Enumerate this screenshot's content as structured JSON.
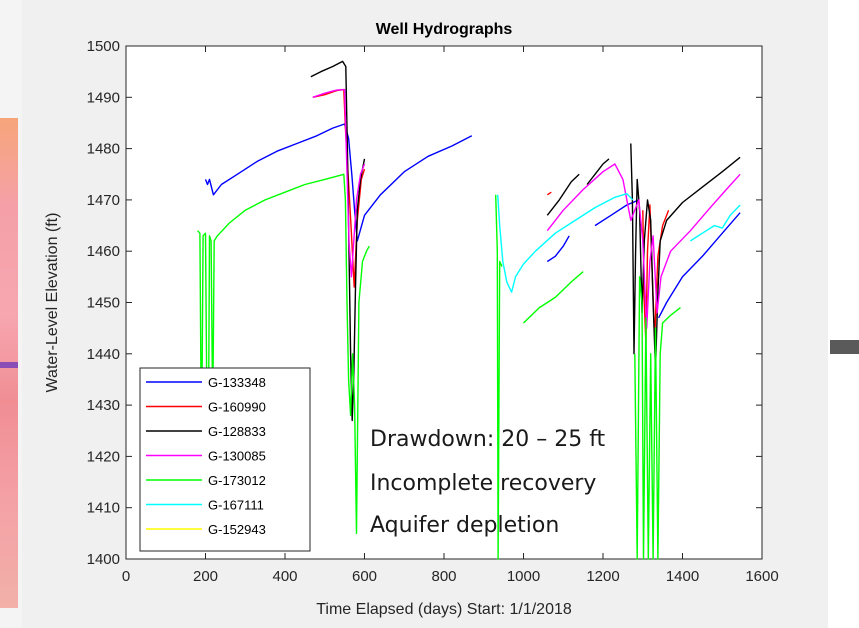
{
  "chart_data": {
    "type": "line",
    "title": "Well Hydrographs",
    "xlabel": "Time Elapsed (days) Start: 1/1/2018",
    "ylabel": "Water-Level Elevation (ft)",
    "xlim": [
      0,
      1600
    ],
    "ylim": [
      1400,
      1500
    ],
    "xticks": [
      0,
      200,
      400,
      600,
      800,
      1000,
      1200,
      1400,
      1600
    ],
    "yticks": [
      1400,
      1410,
      1420,
      1430,
      1440,
      1450,
      1460,
      1470,
      1480,
      1490,
      1500
    ],
    "grid": false,
    "legend_position": "bottom-left",
    "annotations": [
      "Drawdown: 20 – 25 ft",
      "Incomplete recovery",
      "Aquifer depletion"
    ],
    "series": [
      {
        "name": "G-133348",
        "color": "#0000ff",
        "segments": [
          [
            [
              200,
              1474
            ],
            [
              205,
              1473
            ],
            [
              210,
              1474
            ],
            [
              220,
              1471
            ],
            [
              240,
              1473
            ],
            [
              280,
              1475
            ],
            [
              330,
              1477.5
            ],
            [
              380,
              1479.5
            ],
            [
              430,
              1481
            ],
            [
              480,
              1482.5
            ],
            [
              520,
              1484
            ],
            [
              550,
              1484.8
            ],
            [
              560,
              1482
            ],
            [
              568,
              1475
            ],
            [
              575,
              1468
            ],
            [
              582,
              1462
            ],
            [
              600,
              1467
            ],
            [
              640,
              1471
            ],
            [
              700,
              1475.5
            ],
            [
              760,
              1478.5
            ],
            [
              820,
              1480.5
            ],
            [
              870,
              1482.5
            ]
          ],
          [
            [
              1060,
              1458
            ],
            [
              1080,
              1459
            ],
            [
              1100,
              1461
            ],
            [
              1115,
              1463
            ]
          ],
          [
            [
              1180,
              1465
            ],
            [
              1220,
              1467
            ],
            [
              1260,
              1469
            ],
            [
              1290,
              1470
            ]
          ],
          [
            [
              1340,
              1447
            ],
            [
              1360,
              1450
            ],
            [
              1400,
              1455
            ],
            [
              1450,
              1459
            ],
            [
              1500,
              1463.5
            ],
            [
              1545,
              1467.5
            ]
          ]
        ]
      },
      {
        "name": "G-160990",
        "color": "#ff0000",
        "segments": [
          [
            [
              470,
              1490
            ],
            [
              500,
              1490.5
            ],
            [
              530,
              1491.3
            ],
            [
              548,
              1491.5
            ],
            [
              552,
              1484
            ],
            [
              558,
              1476
            ],
            [
              566,
              1465
            ],
            [
              574,
              1453
            ],
            [
              582,
              1466
            ],
            [
              592,
              1474
            ],
            [
              600,
              1476
            ]
          ],
          [
            [
              1060,
              1471
            ],
            [
              1070,
              1471.5
            ]
          ],
          [
            [
              1300,
              1468
            ],
            [
              1304,
              1450
            ],
            [
              1308,
              1442
            ],
            [
              1312,
              1460
            ],
            [
              1318,
              1469
            ],
            [
              1324,
              1455
            ],
            [
              1330,
              1443
            ],
            [
              1338,
              1459
            ],
            [
              1350,
              1465
            ],
            [
              1365,
              1468
            ]
          ]
        ]
      },
      {
        "name": "G-128833",
        "color": "#000000",
        "segments": [
          [
            [
              465,
              1494
            ],
            [
              490,
              1495
            ],
            [
              520,
              1496
            ],
            [
              545,
              1497
            ],
            [
              553,
              1496
            ],
            [
              557,
              1480
            ],
            [
              561,
              1460
            ],
            [
              565,
              1440
            ],
            [
              569,
              1427
            ],
            [
              573,
              1436
            ],
            [
              577,
              1452
            ],
            [
              582,
              1468
            ],
            [
              590,
              1474
            ],
            [
              600,
              1478
            ]
          ],
          [
            [
              1060,
              1467
            ],
            [
              1090,
              1470
            ],
            [
              1120,
              1473.5
            ],
            [
              1140,
              1475
            ]
          ],
          [
            [
              1160,
              1473
            ],
            [
              1180,
              1475
            ],
            [
              1200,
              1477
            ],
            [
              1215,
              1478
            ]
          ],
          [
            [
              1270,
              1481
            ],
            [
              1274,
              1470
            ],
            [
              1278,
              1440
            ],
            [
              1282,
              1460
            ],
            [
              1286,
              1474
            ],
            [
              1292,
              1468
            ],
            [
              1298,
              1448
            ],
            [
              1304,
              1462
            ],
            [
              1312,
              1470
            ],
            [
              1320,
              1466
            ],
            [
              1326,
              1450
            ],
            [
              1332,
              1437
            ],
            [
              1338,
              1452
            ],
            [
              1344,
              1462
            ],
            [
              1360,
              1466
            ],
            [
              1400,
              1469.5
            ],
            [
              1450,
              1472.5
            ],
            [
              1500,
              1475.5
            ],
            [
              1545,
              1478.3
            ]
          ]
        ]
      },
      {
        "name": "G-130085",
        "color": "#ff00ff",
        "segments": [
          [
            [
              470,
              1490
            ],
            [
              500,
              1490.8
            ],
            [
              530,
              1491.4
            ],
            [
              550,
              1491.5
            ],
            [
              555,
              1478
            ],
            [
              561,
              1462
            ],
            [
              567,
              1455
            ],
            [
              573,
              1462
            ],
            [
              580,
              1470
            ],
            [
              590,
              1475
            ],
            [
              600,
              1477
            ]
          ],
          [
            [
              1060,
              1464
            ],
            [
              1100,
              1468
            ],
            [
              1150,
              1472
            ],
            [
              1200,
              1475.5
            ],
            [
              1230,
              1477
            ],
            [
              1250,
              1474
            ],
            [
              1270,
              1466
            ],
            [
              1290,
              1470
            ],
            [
              1300,
              1462
            ],
            [
              1310,
              1445
            ],
            [
              1318,
              1458
            ],
            [
              1326,
              1463
            ],
            [
              1336,
              1448
            ],
            [
              1346,
              1455
            ],
            [
              1370,
              1460
            ],
            [
              1420,
              1464
            ],
            [
              1470,
              1468.5
            ],
            [
              1510,
              1472
            ],
            [
              1545,
              1475
            ]
          ]
        ]
      },
      {
        "name": "G-173012",
        "color": "#00ff00",
        "segments": [
          [
            [
              180,
              1464
            ],
            [
              186,
              1463.5
            ],
            [
              190,
              1420
            ],
            [
              194,
              1463
            ],
            [
              200,
              1463.5
            ],
            [
              206,
              1405
            ],
            [
              210,
              1463
            ],
            [
              214,
              1462
            ],
            [
              218,
              1428
            ],
            [
              222,
              1462
            ],
            [
              230,
              1463
            ],
            [
              260,
              1465.5
            ],
            [
              300,
              1468
            ],
            [
              350,
              1470
            ],
            [
              400,
              1471.5
            ],
            [
              450,
              1473
            ],
            [
              500,
              1474
            ],
            [
              548,
              1475
            ],
            [
              552,
              1470
            ],
            [
              556,
              1450
            ],
            [
              560,
              1435
            ],
            [
              565,
              1428
            ],
            [
              570,
              1440
            ],
            [
              575,
              1430
            ],
            [
              580,
              1405
            ],
            [
              586,
              1450
            ],
            [
              595,
              1458
            ],
            [
              605,
              1460
            ],
            [
              612,
              1461
            ]
          ],
          [
            [
              930,
              1471
            ],
            [
              934,
              1460
            ],
            [
              936,
              1400
            ],
            [
              940,
              1458
            ],
            [
              946,
              1457
            ]
          ],
          [
            [
              1000,
              1446
            ],
            [
              1040,
              1449
            ],
            [
              1080,
              1451
            ],
            [
              1120,
              1454
            ],
            [
              1150,
              1456
            ]
          ],
          [
            [
              1280,
              1440
            ],
            [
              1286,
              1400
            ],
            [
              1292,
              1455
            ],
            [
              1298,
              1450
            ],
            [
              1302,
              1400
            ],
            [
              1308,
              1447
            ],
            [
              1314,
              1400
            ],
            [
              1320,
              1440
            ],
            [
              1326,
              1400
            ],
            [
              1332,
              1445
            ],
            [
              1338,
              1400
            ],
            [
              1344,
              1440
            ],
            [
              1350,
              1446
            ],
            [
              1370,
              1447.5
            ],
            [
              1395,
              1449
            ]
          ]
        ]
      },
      {
        "name": "G-167111",
        "color": "#00ffff",
        "segments": [
          [
            [
              935,
              1471
            ],
            [
              940,
              1465
            ],
            [
              948,
              1458
            ],
            [
              958,
              1454
            ],
            [
              970,
              1452
            ],
            [
              980,
              1455
            ],
            [
              1000,
              1457.5
            ],
            [
              1030,
              1460
            ],
            [
              1080,
              1463.5
            ],
            [
              1130,
              1466
            ],
            [
              1180,
              1468.5
            ],
            [
              1230,
              1470.5
            ],
            [
              1260,
              1471.2
            ],
            [
              1275,
              1470
            ]
          ],
          [
            [
              1420,
              1462
            ],
            [
              1450,
              1463.5
            ],
            [
              1480,
              1465
            ],
            [
              1500,
              1464.5
            ],
            [
              1520,
              1467
            ],
            [
              1545,
              1469
            ]
          ]
        ]
      },
      {
        "name": "G-152943",
        "color": "#ffff00",
        "segments": []
      }
    ]
  }
}
